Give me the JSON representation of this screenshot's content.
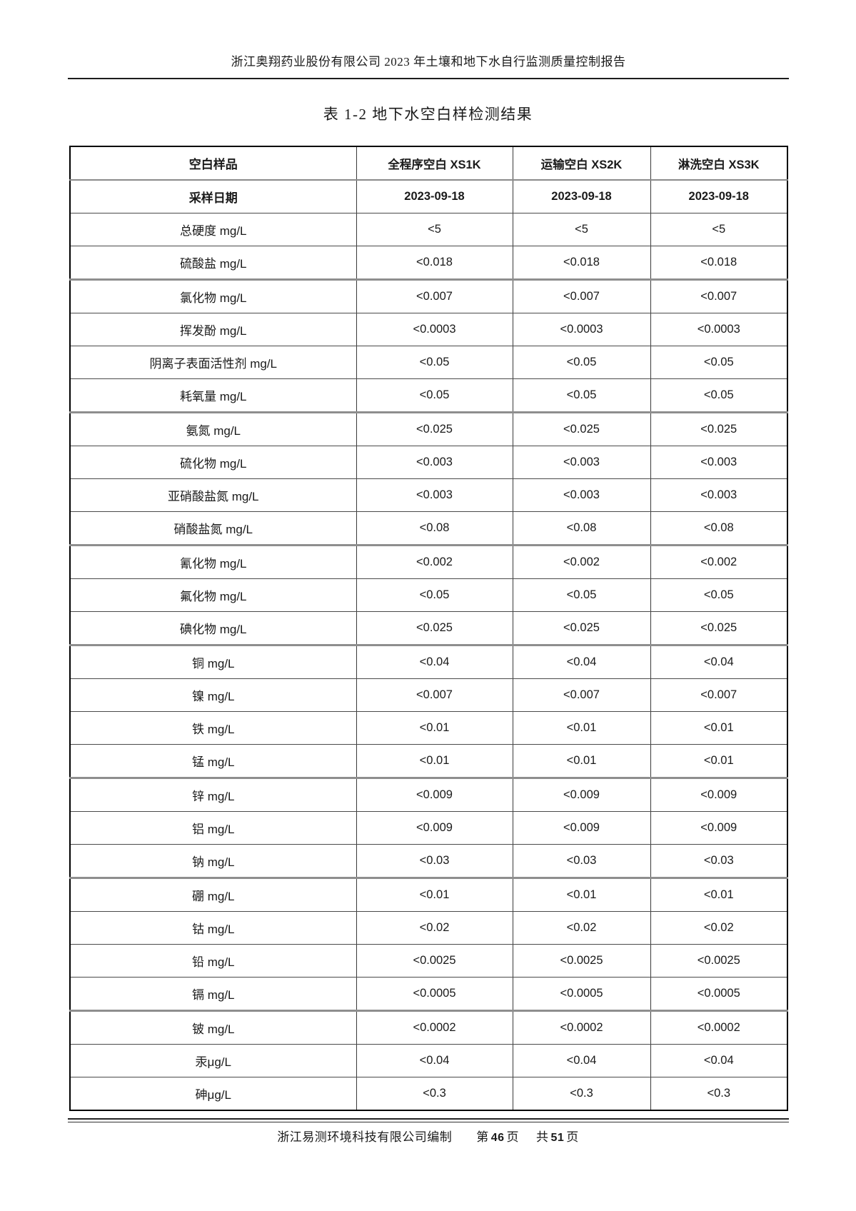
{
  "header": {
    "text": "浙江奥翔药业股份有限公司 2023 年土壤和地下水自行监测质量控制报告"
  },
  "title": {
    "text": "表 1-2 地下水空白样检测结果"
  },
  "table": {
    "columns": [
      "空白样品",
      "全程序空白 XS1K",
      "运输空白 XS2K",
      "淋洗空白 XS3K"
    ],
    "date_row": {
      "label": "采样日期",
      "values": [
        "2023-09-18",
        "2023-09-18",
        "2023-09-18"
      ]
    },
    "rows": [
      {
        "param": "总硬度 mg/L",
        "values": [
          "<5",
          "<5",
          "<5"
        ]
      },
      {
        "param": "硫酸盐 mg/L",
        "values": [
          "<0.018",
          "<0.018",
          "<0.018"
        ]
      },
      {
        "param": "氯化物 mg/L",
        "values": [
          "<0.007",
          "<0.007",
          "<0.007"
        ]
      },
      {
        "param": "挥发酚 mg/L",
        "values": [
          "<0.0003",
          "<0.0003",
          "<0.0003"
        ]
      },
      {
        "param": "阴离子表面活性剂 mg/L",
        "values": [
          "<0.05",
          "<0.05",
          "<0.05"
        ]
      },
      {
        "param": "耗氧量 mg/L",
        "values": [
          "<0.05",
          "<0.05",
          "<0.05"
        ]
      },
      {
        "param": "氨氮 mg/L",
        "values": [
          "<0.025",
          "<0.025",
          "<0.025"
        ]
      },
      {
        "param": "硫化物 mg/L",
        "values": [
          "<0.003",
          "<0.003",
          "<0.003"
        ]
      },
      {
        "param": "亚硝酸盐氮 mg/L",
        "values": [
          "<0.003",
          "<0.003",
          "<0.003"
        ]
      },
      {
        "param": "硝酸盐氮 mg/L",
        "values": [
          "<0.08",
          "<0.08",
          "<0.08"
        ]
      },
      {
        "param": "氰化物 mg/L",
        "values": [
          "<0.002",
          "<0.002",
          "<0.002"
        ]
      },
      {
        "param": "氟化物 mg/L",
        "values": [
          "<0.05",
          "<0.05",
          "<0.05"
        ]
      },
      {
        "param": "碘化物 mg/L",
        "values": [
          "<0.025",
          "<0.025",
          "<0.025"
        ]
      },
      {
        "param": "铜 mg/L",
        "values": [
          "<0.04",
          "<0.04",
          "<0.04"
        ]
      },
      {
        "param": "镍 mg/L",
        "values": [
          "<0.007",
          "<0.007",
          "<0.007"
        ]
      },
      {
        "param": "铁 mg/L",
        "values": [
          "<0.01",
          "<0.01",
          "<0.01"
        ]
      },
      {
        "param": "锰 mg/L",
        "values": [
          "<0.01",
          "<0.01",
          "<0.01"
        ]
      },
      {
        "param": "锌 mg/L",
        "values": [
          "<0.009",
          "<0.009",
          "<0.009"
        ]
      },
      {
        "param": "铝 mg/L",
        "values": [
          "<0.009",
          "<0.009",
          "<0.009"
        ]
      },
      {
        "param": "钠 mg/L",
        "values": [
          "<0.03",
          "<0.03",
          "<0.03"
        ]
      },
      {
        "param": "硼 mg/L",
        "values": [
          "<0.01",
          "<0.01",
          "<0.01"
        ]
      },
      {
        "param": "钴 mg/L",
        "values": [
          "<0.02",
          "<0.02",
          "<0.02"
        ]
      },
      {
        "param": "铅 mg/L",
        "values": [
          "<0.0025",
          "<0.0025",
          "<0.0025"
        ]
      },
      {
        "param": "镉 mg/L",
        "values": [
          "<0.0005",
          "<0.0005",
          "<0.0005"
        ]
      },
      {
        "param": "铍 mg/L",
        "values": [
          "<0.0002",
          "<0.0002",
          "<0.0002"
        ]
      },
      {
        "param": "汞μg/L",
        "values": [
          "<0.04",
          "<0.04",
          "<0.04"
        ]
      },
      {
        "param": "砷μg/L",
        "values": [
          "<0.3",
          "<0.3",
          "<0.3"
        ]
      }
    ]
  },
  "footer": {
    "company": "浙江易测环境科技有限公司编制",
    "page_prefix": "第",
    "page_number": "46",
    "page_unit": "页",
    "total_prefix": "共",
    "total_number": "51",
    "total_unit": "页"
  },
  "colors": {
    "text": "#1a1a1a",
    "border_dark": "#000000",
    "border_thin": "#4a4a4a",
    "border_thick_gray": "#8e8e8e"
  }
}
